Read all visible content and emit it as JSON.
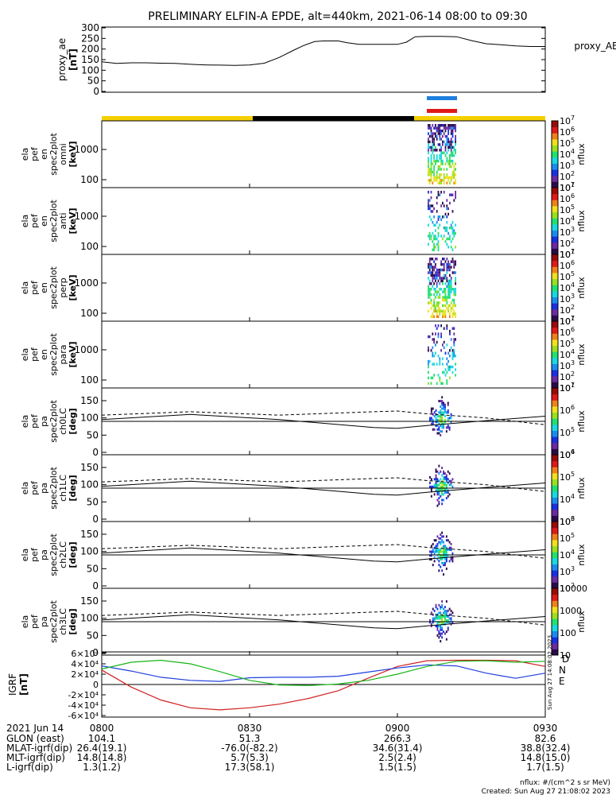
{
  "title": "PRELIMINARY ELFIN-A EPDE, alt=440km, 2021-06-14 08:00 to 09:30",
  "colors": {
    "accent_blue": "#1e7fe0",
    "accent_red": "#e01818",
    "bar_yellow": "#f5d000",
    "bar_black": "#000000",
    "D": "#d02020",
    "N": "#1f3fe0",
    "E": "#17b517"
  },
  "proxy_ae": {
    "ylabel": [
      "proxy_ae",
      "[nT]"
    ],
    "legend": "proxy_AE",
    "yticks": [
      "0",
      "50",
      "100",
      "150",
      "200",
      "250",
      "300"
    ],
    "ylim": [
      0,
      300
    ],
    "x_hours": [
      8.0,
      8.05,
      8.1,
      8.15,
      8.2,
      8.25,
      8.3,
      8.33,
      8.36,
      8.4,
      8.45,
      8.5,
      8.55,
      8.6,
      8.65,
      8.68,
      8.72,
      8.75,
      8.8,
      8.83,
      8.87,
      8.9,
      8.93,
      8.96,
      9.0,
      9.03,
      9.06,
      9.1,
      9.15,
      9.2,
      9.25,
      9.3,
      9.35,
      9.4,
      9.45,
      9.5
    ],
    "values": [
      140,
      132,
      135,
      135,
      133,
      132,
      128,
      126,
      125,
      124,
      123,
      125,
      133,
      160,
      195,
      215,
      235,
      238,
      238,
      230,
      222,
      222,
      222,
      222,
      222,
      232,
      258,
      260,
      260,
      258,
      240,
      225,
      220,
      215,
      212,
      212
    ]
  },
  "status_bars": {
    "blue_bar": "blue",
    "red_bar": "red"
  },
  "spec_panels": [
    {
      "label": [
        "ela",
        "pef",
        "en",
        "spec2plot",
        "omni",
        "[keV]"
      ],
      "yticks": [
        "100",
        "1000"
      ],
      "cbar_labels": [
        "10",
        "10",
        "10",
        "10",
        "10",
        "10",
        "10"
      ],
      "cbar_exps": [
        "1",
        "2",
        "3",
        "4",
        "5",
        "6",
        "7"
      ],
      "cbar_title": "nflux"
    },
    {
      "label": [
        "ela",
        "pef",
        "en",
        "spec2plot",
        "anti",
        "[keV]"
      ],
      "yticks": [
        "100",
        "1000"
      ],
      "cbar_labels": [
        "10",
        "10",
        "10",
        "10",
        "10",
        "10",
        "10"
      ],
      "cbar_exps": [
        "1",
        "2",
        "3",
        "4",
        "5",
        "6",
        "7"
      ],
      "cbar_title": "nflux"
    },
    {
      "label": [
        "ela",
        "pef",
        "en",
        "spec2plot",
        "perp",
        "[keV]"
      ],
      "yticks": [
        "100",
        "1000"
      ],
      "cbar_labels": [
        "10",
        "10",
        "10",
        "10",
        "10",
        "10",
        "10"
      ],
      "cbar_exps": [
        "1",
        "2",
        "3",
        "4",
        "5",
        "6",
        "7"
      ],
      "cbar_title": "nflux"
    },
    {
      "label": [
        "ela",
        "pef",
        "en",
        "spec2plot",
        "para",
        "[keV]"
      ],
      "yticks": [
        "100",
        "1000"
      ],
      "cbar_labels": [
        "10",
        "10",
        "10",
        "10",
        "10",
        "10",
        "10"
      ],
      "cbar_exps": [
        "1",
        "2",
        "3",
        "4",
        "5",
        "6",
        "7"
      ],
      "cbar_title": "nflux"
    }
  ],
  "pa_panels": [
    {
      "label": [
        "ela",
        "pef",
        "pa",
        "spec2plot",
        "ch0LC",
        "[deg]"
      ],
      "yticks": [
        "0",
        "50",
        "100",
        "150"
      ],
      "cbar_labels": [
        "10",
        "10",
        "10",
        "10"
      ],
      "cbar_exps": [
        "4",
        "5",
        "6",
        "7"
      ],
      "cbar_title": "nflux"
    },
    {
      "label": [
        "ela",
        "pef",
        "pa",
        "spec2plot",
        "ch1LC",
        "[deg]"
      ],
      "yticks": [
        "0",
        "50",
        "100",
        "150"
      ],
      "cbar_labels": [
        "10",
        "10",
        "10",
        "10"
      ],
      "cbar_exps": [
        "3",
        "4",
        "5",
        "6"
      ],
      "cbar_title": "nflux"
    },
    {
      "label": [
        "ela",
        "pef",
        "pa",
        "spec2plot",
        "ch2LC",
        "[deg]"
      ],
      "yticks": [
        "0",
        "50",
        "100",
        "150"
      ],
      "cbar_labels": [
        "10",
        "10",
        "10",
        "10",
        "10"
      ],
      "cbar_exps": [
        "2",
        "3",
        "4",
        "5",
        "6"
      ],
      "cbar_title": "nflux"
    },
    {
      "label": [
        "ela",
        "pef",
        "pa",
        "spec2plot",
        "ch3LC",
        "[deg]"
      ],
      "yticks": [
        "0",
        "50",
        "100",
        "150"
      ],
      "cbar_labels": [
        "10",
        "100",
        "1000",
        "10000"
      ],
      "cbar_exps": [
        "",
        "",
        "",
        ""
      ],
      "cbar_title": "nflux"
    }
  ],
  "igrf": {
    "label": [
      "IGRF",
      "[nT]"
    ],
    "yticks": [
      "-6×10⁴",
      "-4×10⁴",
      "-2×10⁴",
      "0",
      "2×10⁴",
      "4×10⁴",
      "6×10⁴"
    ],
    "ylim": [
      -60000,
      60000
    ],
    "legend": [
      "D",
      "N",
      "E"
    ],
    "x_hours": [
      8.0,
      8.1,
      8.2,
      8.3,
      8.4,
      8.5,
      8.6,
      8.7,
      8.8,
      8.9,
      9.0,
      9.1,
      9.2,
      9.3,
      9.4,
      9.5
    ],
    "D": [
      28000,
      -5000,
      -30000,
      -45000,
      -49000,
      -45000,
      -38000,
      -27000,
      -12000,
      12000,
      35000,
      46000,
      47000,
      47000,
      46000,
      35000
    ],
    "N": [
      36000,
      26000,
      14000,
      8000,
      6000,
      13000,
      14000,
      14000,
      16000,
      24000,
      32000,
      38000,
      36000,
      22000,
      12000,
      22000
    ],
    "E": [
      30000,
      43000,
      47000,
      40000,
      25000,
      8000,
      -1000,
      -2000,
      1000,
      8000,
      20000,
      35000,
      45000,
      46000,
      43000,
      45000
    ],
    "zero": [
      0,
      0
    ]
  },
  "tick_labels_x": {
    "date": "2021 Jun 14",
    "times": [
      "0800",
      "0830",
      "0900",
      "0930"
    ]
  },
  "orbit_table": [
    {
      "name": "GLON (east)",
      "vals": [
        "104.1",
        "51.3",
        "266.3",
        "82.6"
      ]
    },
    {
      "name": "MLAT-igrf(dip)",
      "vals": [
        "26.4(19.1)",
        "-76.0(-82.2)",
        "34.6(31.4)",
        "38.8(32.4)"
      ]
    },
    {
      "name": "MLT-igrf(dip)",
      "vals": [
        "14.8(14.8)",
        "5.7(5.3)",
        "2.5(2.4)",
        "14.8(15.0)"
      ]
    },
    {
      "name": "L-igrf(dip)",
      "vals": [
        "1.3(1.2)",
        "17.3(58.1)",
        "1.5(1.5)",
        "1.7(1.5)"
      ]
    }
  ],
  "footer": {
    "units": "nflux: #/(cm^2 s sr MeV)",
    "created": "Created: Sun Aug 27 21:08:02 2023",
    "stamp": "Sun Aug 27 14:08:02 2023"
  }
}
